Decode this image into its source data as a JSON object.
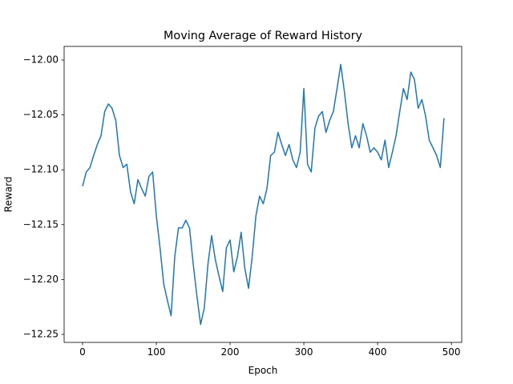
{
  "chart_data": {
    "type": "line",
    "title": "Moving Average of Reward History",
    "x_label": "Epoch",
    "y_label": "Reward",
    "color": "#1f77b4",
    "grid": false,
    "x": [
      0,
      5,
      10,
      15,
      20,
      25,
      30,
      35,
      40,
      45,
      50,
      55,
      60,
      65,
      70,
      75,
      80,
      85,
      90,
      95,
      100,
      105,
      110,
      115,
      120,
      125,
      130,
      135,
      140,
      145,
      150,
      155,
      160,
      165,
      170,
      175,
      180,
      185,
      190,
      195,
      200,
      205,
      210,
      215,
      220,
      225,
      230,
      235,
      240,
      245,
      250,
      255,
      260,
      265,
      270,
      275,
      280,
      285,
      290,
      295,
      300,
      305,
      310,
      315,
      320,
      325,
      330,
      335,
      340,
      345,
      350,
      355,
      360,
      365,
      370,
      375,
      380,
      385,
      390,
      395,
      400,
      405,
      410,
      415,
      420,
      425,
      430,
      435,
      440,
      445,
      450,
      455,
      460,
      465,
      470,
      475,
      480,
      485,
      490
    ],
    "values": [
      -12.115,
      -12.102,
      -12.098,
      -12.087,
      -12.077,
      -12.069,
      -12.047,
      -12.04,
      -12.044,
      -12.055,
      -12.087,
      -12.098,
      -12.095,
      -12.12,
      -12.131,
      -12.109,
      -12.117,
      -12.124,
      -12.106,
      -12.102,
      -12.142,
      -12.171,
      -12.204,
      -12.219,
      -12.233,
      -12.179,
      -12.153,
      -12.153,
      -12.146,
      -12.153,
      -12.186,
      -12.215,
      -12.241,
      -12.226,
      -12.186,
      -12.16,
      -12.182,
      -12.197,
      -12.211,
      -12.171,
      -12.164,
      -12.193,
      -12.179,
      -12.157,
      -12.19,
      -12.208,
      -12.179,
      -12.142,
      -12.124,
      -12.131,
      -12.117,
      -12.087,
      -12.084,
      -12.066,
      -12.077,
      -12.087,
      -12.077,
      -12.091,
      -12.098,
      -12.084,
      -12.026,
      -12.095,
      -12.102,
      -12.062,
      -12.051,
      -12.047,
      -12.066,
      -12.055,
      -12.047,
      -12.026,
      -12.004,
      -12.029,
      -12.058,
      -12.08,
      -12.069,
      -12.08,
      -12.058,
      -12.069,
      -12.084,
      -12.08,
      -12.084,
      -12.091,
      -12.073,
      -12.098,
      -12.084,
      -12.069,
      -12.047,
      -12.026,
      -12.036,
      -12.011,
      -12.018,
      -12.044,
      -12.036,
      -12.051,
      -12.073,
      -12.08,
      -12.087,
      -12.098,
      -12.053
    ],
    "xlim": [
      -25,
      514
    ],
    "ylim": [
      -12.2573,
      -11.9876
    ],
    "xticks": [
      0,
      100,
      200,
      300,
      400,
      500
    ],
    "yticks": [
      {
        "value": -12.25,
        "label": "−12.25"
      },
      {
        "value": -12.2,
        "label": "−12.20"
      },
      {
        "value": -12.15,
        "label": "−12.15"
      },
      {
        "value": -12.1,
        "label": "−12.10"
      },
      {
        "value": -12.05,
        "label": "−12.05"
      },
      {
        "value": -12.0,
        "label": "−12.00"
      }
    ]
  }
}
